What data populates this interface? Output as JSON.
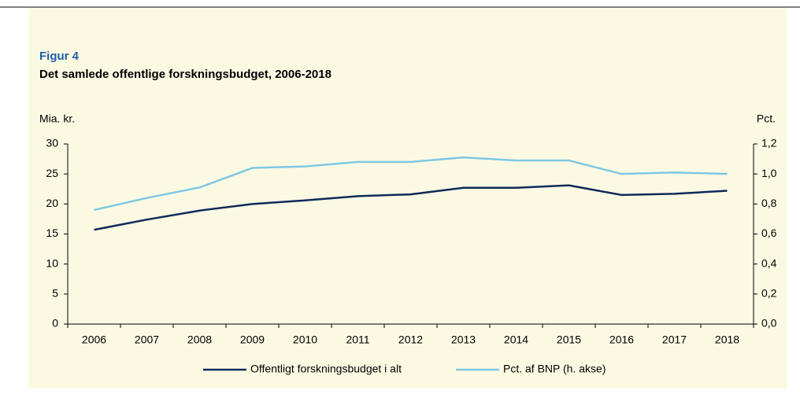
{
  "chart_data": {
    "type": "line",
    "title": "Figur 4",
    "subtitle": "Det samlede offentlige forskningsbudget, 2006-2018",
    "y_label": "Mia. kr.",
    "y2_label": "Pct.",
    "categories": [
      "2006",
      "2007",
      "2008",
      "2009",
      "2010",
      "2011",
      "2012",
      "2013",
      "2014",
      "2015",
      "2016",
      "2017",
      "2018"
    ],
    "series": [
      {
        "name": "Offentligt forskningsbudget i alt",
        "color": "#0f2a5a",
        "values": [
          15.7,
          17.4,
          18.9,
          20.0,
          20.6,
          21.3,
          21.6,
          22.7,
          22.7,
          23.1,
          21.5,
          21.7,
          22.2
        ]
      },
      {
        "name": "Pct. af BNP (h. akse)",
        "color": "#7ec8e3",
        "axis": "y2",
        "values": [
          0.76,
          0.84,
          0.91,
          1.04,
          1.05,
          1.08,
          1.08,
          1.11,
          1.09,
          1.09,
          1.0,
          1.01,
          1.0
        ]
      }
    ],
    "ylim": [
      0,
      30
    ],
    "yticks": [
      0,
      5,
      10,
      15,
      20,
      25,
      30
    ],
    "y2lim": [
      0,
      1.2
    ],
    "y2ticks": [
      {
        "value": 0,
        "label": "0,0"
      },
      {
        "value": 0.2,
        "label": "0,2"
      },
      {
        "value": 0.4,
        "label": "0,4"
      },
      {
        "value": 0.6,
        "label": "0,6"
      },
      {
        "value": 0.8,
        "label": "0,8"
      },
      {
        "value": 1.0,
        "label": "1,0"
      },
      {
        "value": 1.2,
        "label": "1,2"
      }
    ],
    "legend": "bottom"
  }
}
